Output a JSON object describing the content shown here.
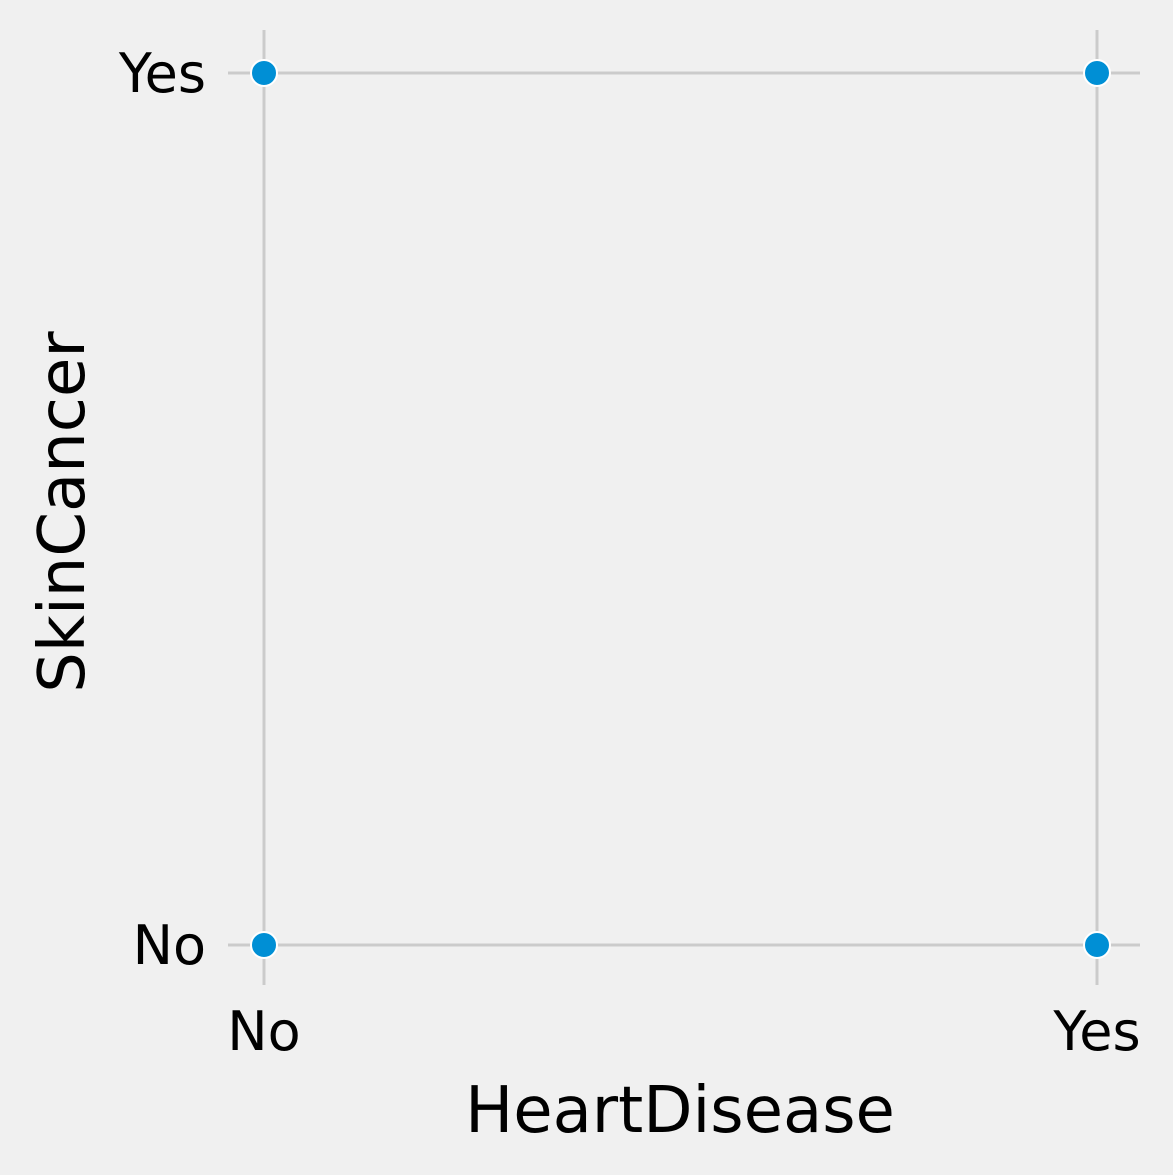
{
  "chart_data": {
    "type": "scatter",
    "title": "",
    "xlabel": "HeartDisease",
    "ylabel": "SkinCancer",
    "x_categories": [
      "No",
      "Yes"
    ],
    "y_categories": [
      "No",
      "Yes"
    ],
    "points": [
      {
        "x": "No",
        "y": "Yes"
      },
      {
        "x": "Yes",
        "y": "Yes"
      },
      {
        "x": "No",
        "y": "No"
      },
      {
        "x": "Yes",
        "y": "No"
      }
    ],
    "grid": true,
    "legend": false,
    "colors": {
      "background": "#f0f0f0",
      "grid": "#cbcbcb",
      "marker": "#008fd5",
      "marker_edge": "#ffffff",
      "text": "#000000"
    }
  }
}
